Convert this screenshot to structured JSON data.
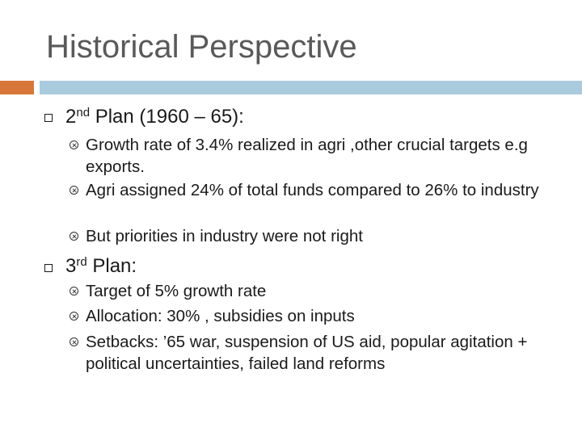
{
  "slide": {
    "title": "Historical Perspective"
  },
  "sections": [
    {
      "heading_prefix": "2",
      "heading_sup": "nd",
      "heading_suffix": " Plan (1960 – 65):",
      "items": [
        "Growth rate of 3.4% realized in agri ,other crucial targets e.g exports.",
        "Agri assigned 24% of total funds compared to 26% to industry",
        "But priorities in industry were not right"
      ]
    },
    {
      "heading_prefix": "3",
      "heading_sup": "rd",
      "heading_suffix": " Plan:",
      "items": [
        "Target of 5% growth rate",
        "Allocation: 30% , subsidies on inputs",
        "Setbacks: ’65 war, suspension of US aid, popular agitation + political uncertainties, failed land reforms"
      ]
    }
  ],
  "colors": {
    "accent": "#d8763a",
    "rule": "#aacbde",
    "title": "#595959"
  },
  "icons": {
    "level1": "hollow-square-bullet",
    "level2": "circled-x-bullet"
  }
}
